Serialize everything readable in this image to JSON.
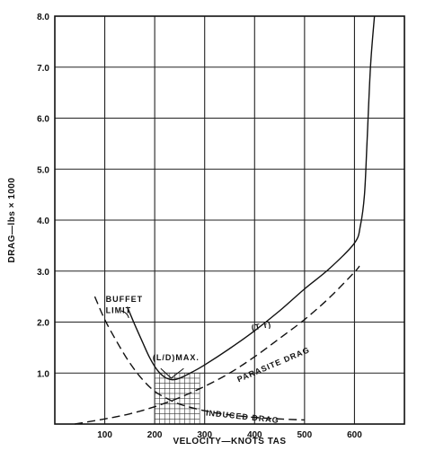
{
  "chart_data": {
    "type": "line",
    "xlabel": "VELOCITY—KNOTS TAS",
    "ylabel": "DRAG—lbs × 1000",
    "xlim": [
      0,
      700
    ],
    "ylim": [
      0,
      8
    ],
    "x_ticks": [
      "100",
      "200",
      "300",
      "400",
      "500",
      "600"
    ],
    "y_ticks": [
      "1.0",
      "2.0",
      "3.0",
      "4.0",
      "5.0",
      "6.0",
      "7.0",
      "8.0"
    ],
    "grid": true,
    "series": [
      {
        "name": "(T r)",
        "style": "solid",
        "x": [
          145,
          160,
          175,
          190,
          205,
          220,
          235,
          250,
          275,
          300,
          350,
          400,
          450,
          500,
          550,
          600,
          612,
          620,
          625,
          632,
          640
        ],
        "y": [
          2.3,
          1.95,
          1.62,
          1.3,
          1.06,
          0.92,
          0.87,
          0.9,
          1.02,
          1.16,
          1.48,
          1.83,
          2.22,
          2.65,
          3.05,
          3.55,
          3.9,
          4.5,
          5.5,
          7.0,
          8.0
        ]
      },
      {
        "name": "PARASITE DRAG",
        "style": "dashed",
        "x": [
          40,
          100,
          150,
          200,
          250,
          300,
          350,
          400,
          450,
          500,
          550,
          600,
          610
        ],
        "y": [
          0.0,
          0.1,
          0.2,
          0.34,
          0.52,
          0.74,
          1.0,
          1.32,
          1.68,
          2.05,
          2.48,
          2.98,
          3.1
        ]
      },
      {
        "name": "INDUCED DRAG",
        "style": "dashed",
        "x": [
          80,
          100,
          125,
          150,
          175,
          200,
          225,
          250,
          300,
          350,
          400,
          450,
          500
        ],
        "y": [
          2.5,
          2.05,
          1.6,
          1.2,
          0.88,
          0.64,
          0.5,
          0.39,
          0.26,
          0.18,
          0.13,
          0.1,
          0.08
        ]
      }
    ],
    "hatched_region": {
      "x": [
        200,
        290
      ],
      "y": [
        0,
        1
      ]
    },
    "annotations": [
      {
        "id": "buffet",
        "lines": [
          "BUFFET",
          "LIMIT"
        ]
      },
      {
        "id": "ld",
        "text": "(L/D)MAX."
      },
      {
        "id": "tr",
        "text": "(T r)"
      },
      {
        "id": "parasite",
        "text": "PARASITE DRAG"
      },
      {
        "id": "induced",
        "text": "INDUCED DRAG"
      }
    ]
  }
}
